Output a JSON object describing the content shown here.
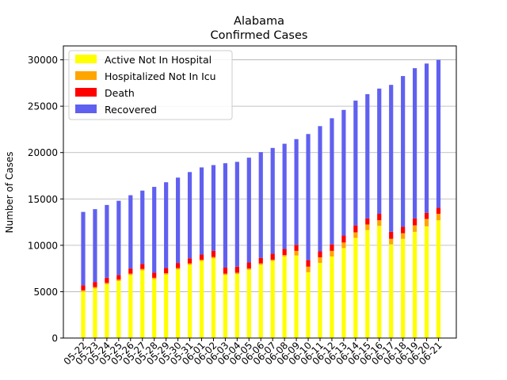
{
  "chart_data": {
    "type": "bar",
    "stacked": true,
    "title": "Alabama",
    "subtitle": "Confirmed Cases",
    "xlabel": "",
    "ylabel": "Number of Cases",
    "ylim": [
      0,
      31500
    ],
    "yticks": [
      0,
      5000,
      10000,
      15000,
      20000,
      25000,
      30000
    ],
    "grid": "horizontal",
    "legend_position": "top-left",
    "categories": [
      "05-22",
      "05-23",
      "05-24",
      "05-25",
      "05-26",
      "05-27",
      "05-28",
      "05-29",
      "05-30",
      "05-31",
      "06-01",
      "06-02",
      "06-03",
      "06-04",
      "06-05",
      "06-06",
      "06-07",
      "06-08",
      "06-09",
      "06-10",
      "06-11",
      "06-12",
      "06-13",
      "06-14",
      "06-15",
      "06-16",
      "06-17",
      "06-18",
      "06-19",
      "06-20",
      "06-21"
    ],
    "series": [
      {
        "name": "Active Not In Hospital",
        "color": "#ffff00",
        "values": [
          5000,
          5350,
          5800,
          6150,
          6800,
          7300,
          6350,
          6850,
          7400,
          7900,
          8300,
          8600,
          6800,
          6900,
          7350,
          7900,
          8300,
          8800,
          8900,
          7100,
          8100,
          8800,
          9700,
          10800,
          11650,
          12100,
          10100,
          10700,
          11450,
          12050,
          12700
        ]
      },
      {
        "name": "Hospitalized Not In Icu",
        "color": "#ffa500",
        "values": [
          150,
          150,
          150,
          150,
          150,
          150,
          150,
          150,
          150,
          150,
          150,
          150,
          150,
          150,
          150,
          150,
          150,
          150,
          500,
          600,
          600,
          600,
          600,
          600,
          600,
          600,
          600,
          600,
          700,
          800,
          700
        ]
      },
      {
        "name": "Death",
        "color": "#ff0000",
        "values": [
          550,
          550,
          550,
          500,
          550,
          550,
          550,
          550,
          550,
          550,
          550,
          650,
          650,
          650,
          650,
          600,
          650,
          650,
          650,
          700,
          650,
          700,
          750,
          750,
          650,
          700,
          750,
          700,
          750,
          650,
          650
        ]
      },
      {
        "name": "Recovered",
        "color": "#6060f0",
        "values": [
          7900,
          7850,
          7850,
          8000,
          7900,
          7900,
          9250,
          9250,
          9200,
          9300,
          9400,
          9250,
          11250,
          11300,
          11300,
          11400,
          11400,
          11350,
          11400,
          13600,
          13500,
          13600,
          13550,
          13450,
          13400,
          13500,
          15850,
          16250,
          16200,
          16100,
          15950
        ]
      }
    ]
  }
}
